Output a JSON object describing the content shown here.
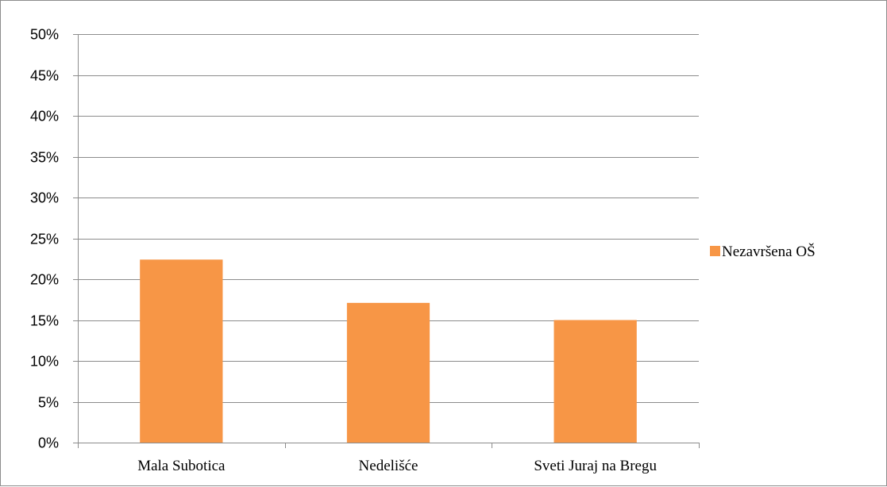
{
  "chart_data": {
    "type": "bar",
    "title": "",
    "xlabel": "",
    "ylabel": "",
    "categories": [
      "Mala Subotica",
      "Nedelišće",
      "Sveti Juraj na Bregu"
    ],
    "series": [
      {
        "name": "Nezavršena OŠ",
        "values": [
          0.224,
          0.171,
          0.15
        ]
      }
    ],
    "ylim": [
      0,
      0.5
    ],
    "yticks": [
      0,
      0.05,
      0.1,
      0.15,
      0.2,
      0.25,
      0.3,
      0.35,
      0.4,
      0.45,
      0.5
    ],
    "ytick_labels": [
      "0%",
      "5%",
      "10%",
      "15%",
      "20%",
      "25%",
      "30%",
      "35%",
      "40%",
      "45%",
      "50%"
    ],
    "grid": true,
    "legend_position": "right",
    "colors": {
      "bar": "#f79646",
      "grid": "#8c8c8c",
      "axis": "#8c8c8c"
    }
  }
}
